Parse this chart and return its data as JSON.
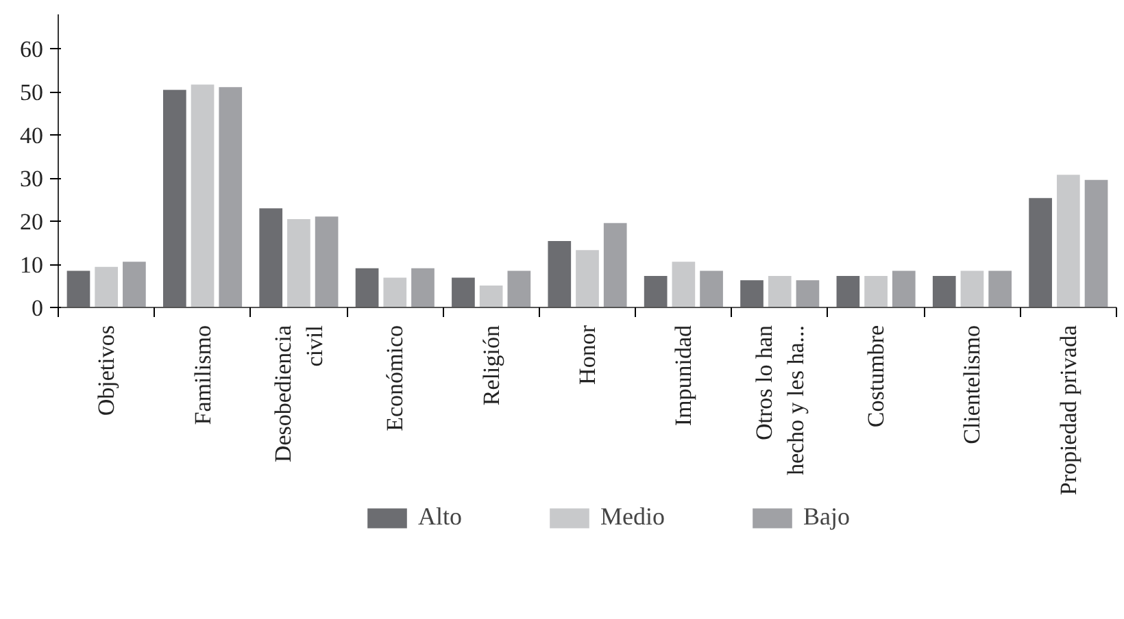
{
  "chart_data": {
    "type": "bar",
    "categories": [
      "Objetivos",
      "Familismo",
      "Desobediencia\ncivil",
      "Económico",
      "Religión",
      "Honor",
      "Impunidad",
      "Otros lo han\nhecho y les ha...",
      "Costumbre",
      "Clientelismo",
      "Propiedad privada"
    ],
    "series": [
      {
        "name": "Alto",
        "color": "#6c6d71",
        "values": [
          8.5,
          50.5,
          23.0,
          9.1,
          6.9,
          15.4,
          7.3,
          6.3,
          7.3,
          7.3,
          25.4
        ]
      },
      {
        "name": "Medio",
        "color": "#c8c9cb",
        "values": [
          9.4,
          51.7,
          20.5,
          6.9,
          5.1,
          13.3,
          10.6,
          7.3,
          7.3,
          8.5,
          30.8
        ]
      },
      {
        "name": "Bajo",
        "color": "#a0a1a5",
        "values": [
          10.6,
          51.1,
          21.1,
          9.1,
          8.5,
          19.6,
          8.5,
          6.3,
          8.5,
          8.5,
          29.6
        ]
      }
    ],
    "ylim": [
      0,
      68
    ],
    "yticks": [
      0,
      10,
      20,
      30,
      40,
      50,
      60
    ],
    "grid": false,
    "legend": "bottom"
  }
}
